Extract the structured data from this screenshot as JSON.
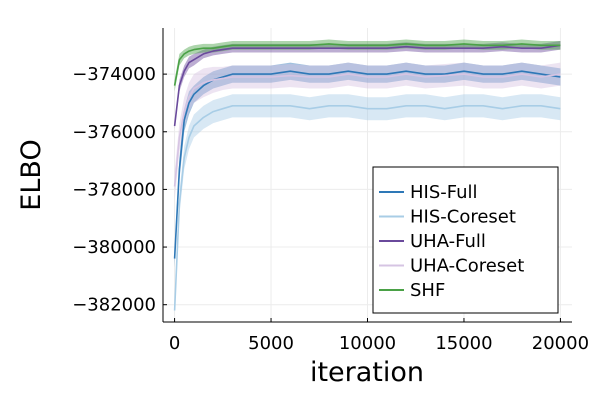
{
  "chart_data": {
    "type": "line",
    "title": "",
    "xlabel": "iteration",
    "ylabel": "ELBO",
    "xlim": [
      -600,
      20600
    ],
    "ylim": [
      -382600,
      -372400
    ],
    "xticks": [
      0,
      5000,
      10000,
      15000,
      20000
    ],
    "xtick_labels": [
      "0",
      "5000",
      "10000",
      "15000",
      "20000"
    ],
    "yticks": [
      -374000,
      -376000,
      -378000,
      -380000,
      -382000
    ],
    "ytick_labels": [
      "−374000",
      "−376000",
      "−378000",
      "−380000",
      "−382000"
    ],
    "grid": true,
    "legend_position": "bottom-right",
    "x": [
      0,
      250,
      500,
      750,
      1000,
      1500,
      2000,
      2500,
      3000,
      4000,
      5000,
      6000,
      7000,
      8000,
      9000,
      10000,
      11000,
      12000,
      13000,
      14000,
      15000,
      16000,
      17000,
      18000,
      19000,
      20000
    ],
    "series": [
      {
        "name": "HIS-Full",
        "color": "#2e78b7",
        "values": [
          -380400,
          -377300,
          -375600,
          -375000,
          -374700,
          -374400,
          -374200,
          -374100,
          -374000,
          -374000,
          -374000,
          -373900,
          -374000,
          -374000,
          -373900,
          -374000,
          -374000,
          -373900,
          -374000,
          -374000,
          -373900,
          -374000,
          -374000,
          -373900,
          -374000,
          -374100
        ],
        "band_low": [
          -380700,
          -377700,
          -376000,
          -375400,
          -375000,
          -374700,
          -374500,
          -374400,
          -374300,
          -374300,
          -374300,
          -374200,
          -374300,
          -374300,
          -374200,
          -374300,
          -374300,
          -374200,
          -374300,
          -374300,
          -374200,
          -374300,
          -374300,
          -374200,
          -374300,
          -374400
        ],
        "band_high": [
          -380100,
          -376900,
          -375200,
          -374600,
          -374400,
          -374100,
          -373900,
          -373800,
          -373700,
          -373700,
          -373700,
          -373600,
          -373700,
          -373700,
          -373600,
          -373700,
          -373700,
          -373600,
          -373700,
          -373700,
          -373600,
          -373700,
          -373700,
          -373600,
          -373700,
          -373800
        ]
      },
      {
        "name": "HIS-Coreset",
        "color": "#a8cde6",
        "values": [
          -382200,
          -378500,
          -376900,
          -376200,
          -375800,
          -375500,
          -375300,
          -375200,
          -375100,
          -375100,
          -375100,
          -375100,
          -375200,
          -375100,
          -375100,
          -375200,
          -375200,
          -375100,
          -375100,
          -375200,
          -375100,
          -375100,
          -375200,
          -375100,
          -375100,
          -375200
        ],
        "band_low": [
          -382400,
          -378900,
          -377300,
          -376600,
          -376200,
          -375900,
          -375700,
          -375600,
          -375500,
          -375500,
          -375500,
          -375500,
          -375600,
          -375500,
          -375500,
          -375600,
          -375600,
          -375500,
          -375500,
          -375600,
          -375500,
          -375500,
          -375600,
          -375500,
          -375500,
          -375600
        ],
        "band_high": [
          -382000,
          -378100,
          -376500,
          -375800,
          -375400,
          -375100,
          -374900,
          -374800,
          -374700,
          -374700,
          -374700,
          -374700,
          -374800,
          -374700,
          -374700,
          -374800,
          -374800,
          -374700,
          -374700,
          -374800,
          -374700,
          -374700,
          -374800,
          -374700,
          -374700,
          -374800
        ]
      },
      {
        "name": "UHA-Full",
        "color": "#6a4a9c",
        "values": [
          -375800,
          -374400,
          -373900,
          -373600,
          -373500,
          -373300,
          -373200,
          -373150,
          -373100,
          -373100,
          -373100,
          -373100,
          -373100,
          -373100,
          -373100,
          -373100,
          -373100,
          -373050,
          -373100,
          -373100,
          -373100,
          -373100,
          -373050,
          -373100,
          -373100,
          -373000
        ],
        "band_low": [
          -375900,
          -374600,
          -374100,
          -373800,
          -373700,
          -373450,
          -373350,
          -373300,
          -373250,
          -373250,
          -373250,
          -373250,
          -373250,
          -373250,
          -373250,
          -373250,
          -373250,
          -373200,
          -373250,
          -373250,
          -373250,
          -373250,
          -373200,
          -373250,
          -373250,
          -373150
        ],
        "band_high": [
          -375700,
          -374200,
          -373700,
          -373400,
          -373300,
          -373150,
          -373050,
          -373000,
          -372950,
          -372950,
          -372950,
          -372950,
          -372950,
          -372950,
          -372950,
          -372950,
          -372950,
          -372900,
          -372950,
          -372950,
          -372950,
          -372950,
          -372900,
          -372950,
          -372950,
          -372850
        ]
      },
      {
        "name": "UHA-Coreset",
        "color": "#d6c4e3",
        "values": [
          -377900,
          -376200,
          -375300,
          -374800,
          -374500,
          -374300,
          -374200,
          -374150,
          -374100,
          -374100,
          -374100,
          -374050,
          -374100,
          -374100,
          -374000,
          -374100,
          -374100,
          -374000,
          -374100,
          -374050,
          -374000,
          -374100,
          -374100,
          -374000,
          -374100,
          -374000
        ],
        "band_low": [
          -378400,
          -376700,
          -375800,
          -375300,
          -375000,
          -374800,
          -374650,
          -374550,
          -374500,
          -374500,
          -374500,
          -374450,
          -374500,
          -374500,
          -374400,
          -374500,
          -374500,
          -374400,
          -374500,
          -374450,
          -374400,
          -374500,
          -374500,
          -374400,
          -374500,
          -374400
        ],
        "band_high": [
          -377400,
          -375700,
          -374800,
          -374300,
          -374000,
          -373800,
          -373750,
          -373750,
          -373700,
          -373700,
          -373700,
          -373650,
          -373700,
          -373700,
          -373600,
          -373700,
          -373700,
          -373600,
          -373700,
          -373650,
          -373600,
          -373700,
          -373700,
          -373600,
          -373700,
          -373600
        ]
      },
      {
        "name": "SHF",
        "color": "#4aa146",
        "values": [
          -374400,
          -373500,
          -373300,
          -373200,
          -373150,
          -373100,
          -373100,
          -373050,
          -373000,
          -373000,
          -373000,
          -373000,
          -373000,
          -372950,
          -373000,
          -373000,
          -373000,
          -372950,
          -373000,
          -373000,
          -372950,
          -373000,
          -373000,
          -372950,
          -373000,
          -373000
        ],
        "band_low": [
          -374600,
          -373700,
          -373450,
          -373350,
          -373300,
          -373250,
          -373250,
          -373200,
          -373150,
          -373150,
          -373150,
          -373150,
          -373150,
          -373100,
          -373150,
          -373150,
          -373150,
          -373100,
          -373150,
          -373150,
          -373100,
          -373150,
          -373150,
          -373100,
          -373150,
          -373150
        ],
        "band_high": [
          -374200,
          -373300,
          -373150,
          -373050,
          -373000,
          -372950,
          -372950,
          -372900,
          -372850,
          -372850,
          -372850,
          -372850,
          -372850,
          -372800,
          -372850,
          -372850,
          -372850,
          -372800,
          -372850,
          -372850,
          -372800,
          -372850,
          -372850,
          -372800,
          -372850,
          -372850
        ]
      }
    ]
  }
}
